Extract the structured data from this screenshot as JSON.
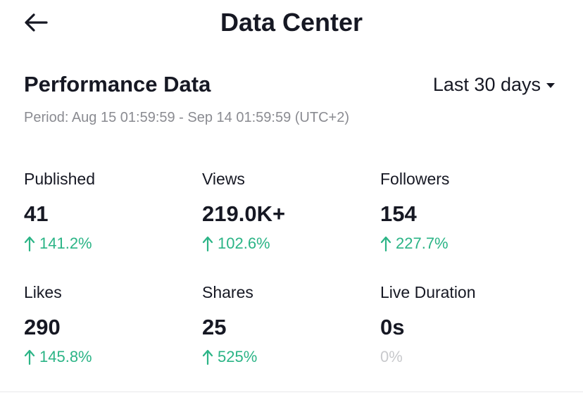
{
  "header": {
    "title": "Data Center"
  },
  "section": {
    "title": "Performance Data",
    "range_label": "Last 30 days",
    "period": "Period: Aug 15 01:59:59 - Sep 14 01:59:59 (UTC+2)"
  },
  "stats": [
    {
      "label": "Published",
      "value": "41",
      "change": "141.2%",
      "trend": "up"
    },
    {
      "label": "Views",
      "value": "219.0K+",
      "change": "102.6%",
      "trend": "up"
    },
    {
      "label": "Followers",
      "value": "154",
      "change": "227.7%",
      "trend": "up"
    },
    {
      "label": "Likes",
      "value": "290",
      "change": "145.8%",
      "trend": "up"
    },
    {
      "label": "Shares",
      "value": "25",
      "change": "525%",
      "trend": "up"
    },
    {
      "label": "Live Duration",
      "value": "0s",
      "change": "0%",
      "trend": "none"
    }
  ],
  "colors": {
    "positive": "#2bb486",
    "neutral": "#c8c9cc",
    "muted": "#8a8b91",
    "text": "#161823"
  }
}
